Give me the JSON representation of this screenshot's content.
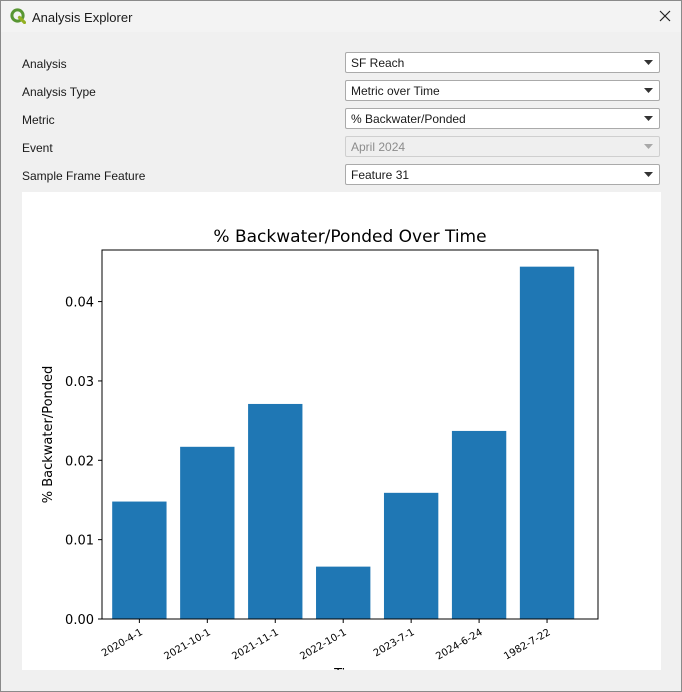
{
  "window": {
    "title": "Analysis Explorer",
    "app_icon": "qgis-logo-icon",
    "close_icon": "close-icon"
  },
  "form": {
    "analysis": {
      "label": "Analysis",
      "value": "SF Reach"
    },
    "analysis_type": {
      "label": "Analysis Type",
      "value": "Metric over Time"
    },
    "metric": {
      "label": "Metric",
      "value": "% Backwater/Ponded"
    },
    "event": {
      "label": "Event",
      "value": "April 2024",
      "disabled": true
    },
    "sample_frame_feature": {
      "label": "Sample Frame Feature",
      "value": "Feature 31"
    }
  },
  "chart_data": {
    "type": "bar",
    "title": "% Backwater/Ponded Over Time",
    "xlabel": "Time",
    "ylabel": "% Backwater/Ponded",
    "categories": [
      "2020-4-1",
      "2021-10-1",
      "2021-11-1",
      "2022-10-1",
      "2023-7-1",
      "2024-6-24",
      "1982-7-22"
    ],
    "values": [
      0.0148,
      0.0217,
      0.0271,
      0.0066,
      0.0159,
      0.0237,
      0.0444
    ],
    "ylim": [
      0,
      0.0465
    ],
    "yticks": [
      0.0,
      0.01,
      0.02,
      0.03,
      0.04
    ],
    "ytick_labels": [
      "0.00",
      "0.01",
      "0.02",
      "0.03",
      "0.04"
    ],
    "bar_color": "#1f77b4",
    "grid": false
  }
}
